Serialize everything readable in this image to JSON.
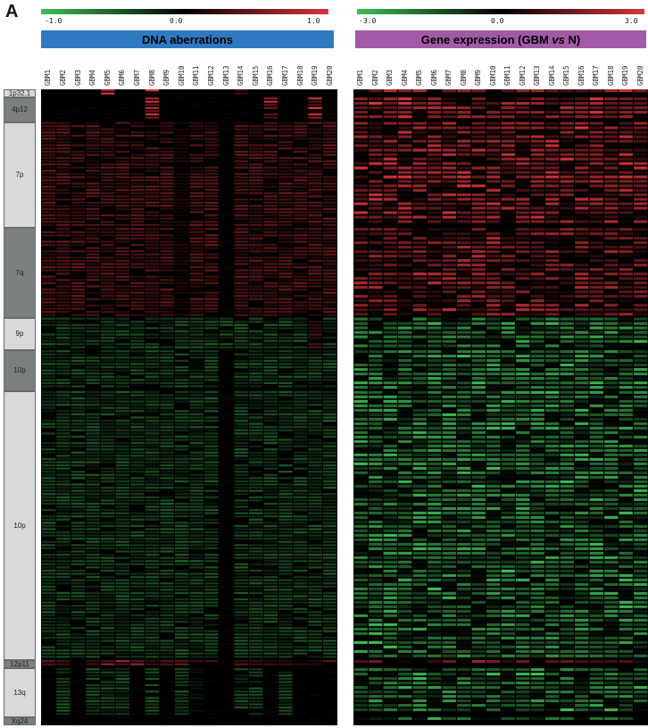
{
  "panel_label": "A",
  "colors": {
    "green": "#3fbf55",
    "black": "#000000",
    "red": "#d9353c",
    "dna_header": "#2f79c3",
    "expr_header": "#a35aa6",
    "chrom_light": "#d9d9d9",
    "chrom_dark": "#7a7f80"
  },
  "scales": {
    "dna": {
      "min_label": "-1.0",
      "mid_label": "0.0",
      "max_label": "1.0"
    },
    "expr": {
      "min_label": "-3.0",
      "mid_label": "0.0",
      "max_label": "3.0"
    }
  },
  "headers": {
    "dna": "DNA aberrations",
    "expr": "Gene expression (GBM vs N)"
  },
  "samples": [
    "GBM1",
    "GBM2",
    "GBM3",
    "GBM4",
    "GBM5",
    "GBM6",
    "GBM7",
    "GBM8",
    "GBM9",
    "GBM10",
    "GBM11",
    "GBM12",
    "GBM13",
    "GBM14",
    "GBM15",
    "GBM16",
    "GBM17",
    "GBM18",
    "GBM19",
    "GBM20"
  ],
  "chromosome_bands": [
    {
      "label": "1p32.1",
      "shade": "light",
      "rows": 1
    },
    {
      "label": "4p12",
      "shade": "dark",
      "rows": 3
    },
    {
      "label": "7p",
      "shade": "light",
      "rows": 13
    },
    {
      "label": "7q",
      "shade": "dark",
      "rows": 11
    },
    {
      "label": "9p",
      "shade": "light",
      "rows": 4
    },
    {
      "label": "10p",
      "shade": "dark",
      "rows": 5
    },
    {
      "label": "10p",
      "shade": "light",
      "rows": 33
    },
    {
      "label": "12p11",
      "shade": "dark",
      "rows": 1
    },
    {
      "label": "13q",
      "shade": "light",
      "rows": 6
    },
    {
      "label": "Xq24",
      "shade": "dark",
      "rows": 1
    }
  ],
  "chart_data": [
    {
      "type": "heatmap",
      "title": "DNA aberrations",
      "columns": [
        "GBM1",
        "GBM2",
        "GBM3",
        "GBM4",
        "GBM5",
        "GBM6",
        "GBM7",
        "GBM8",
        "GBM9",
        "GBM10",
        "GBM11",
        "GBM12",
        "GBM13",
        "GBM14",
        "GBM15",
        "GBM16",
        "GBM17",
        "GBM18",
        "GBM19",
        "GBM20"
      ],
      "row_groups": [
        "1p32.1",
        "4p12",
        "7p",
        "7q",
        "9p",
        "10p",
        "10p",
        "12p11",
        "13q",
        "Xq24"
      ],
      "value_range": [
        -1.0,
        1.0
      ],
      "summary_by_group": {
        "1p32.1": [
          0,
          0,
          0,
          0,
          0.9,
          0,
          0,
          0.9,
          0,
          0,
          0,
          0,
          0,
          0.2,
          0,
          0,
          0,
          0,
          0,
          0
        ],
        "4p12": [
          0,
          0,
          0,
          0,
          0,
          0,
          0,
          0.8,
          0,
          0,
          0,
          0,
          0,
          0,
          0,
          0.6,
          0,
          0,
          0.7,
          0
        ],
        "7p": [
          0.3,
          0.3,
          0.3,
          0.3,
          0.3,
          0.3,
          0.3,
          0.3,
          0.3,
          0.1,
          0.3,
          0.3,
          0,
          0.3,
          0.3,
          0.3,
          0.3,
          0.3,
          0.3,
          0.3
        ],
        "7q": [
          0.3,
          0.3,
          0.3,
          0.3,
          0.3,
          0.3,
          0.3,
          0.3,
          0.3,
          0.1,
          0.3,
          0.3,
          0,
          0.3,
          0.3,
          0.3,
          0.3,
          0.3,
          0.3,
          0.3
        ],
        "9p": [
          -0.3,
          -0.3,
          -0.3,
          -0.3,
          -0.3,
          -0.3,
          -0.3,
          -0.3,
          -0.3,
          -0.3,
          -0.3,
          -0.3,
          -0.3,
          -0.3,
          -0.3,
          -0.3,
          -0.3,
          -0.3,
          0.3,
          -0.3
        ],
        "10p_a": [
          -0.3,
          -0.3,
          -0.3,
          -0.3,
          -0.3,
          -0.3,
          -0.3,
          -0.3,
          -0.3,
          -0.3,
          -0.3,
          -0.3,
          0,
          -0.3,
          -0.3,
          -0.3,
          -0.3,
          -0.3,
          -0.3,
          -0.3
        ],
        "10p_b": [
          -0.3,
          -0.3,
          -0.3,
          -0.3,
          -0.3,
          -0.3,
          -0.3,
          -0.3,
          -0.3,
          -0.3,
          -0.3,
          -0.3,
          0,
          -0.3,
          -0.3,
          -0.3,
          -0.3,
          -0.3,
          -0.3,
          -0.3
        ],
        "12p11": [
          0.3,
          0.3,
          0.3,
          0.3,
          0.5,
          0.5,
          0.5,
          0.3,
          0.5,
          0.5,
          0.3,
          0.3,
          0,
          0.3,
          0.3,
          0.3,
          0.3,
          0.3,
          0.3,
          0.3
        ],
        "13q": [
          0,
          -0.3,
          0,
          -0.3,
          -0.3,
          -0.3,
          0,
          -0.3,
          0,
          -0.3,
          -0.1,
          0,
          0,
          -0.3,
          -0.3,
          0,
          -0.3,
          0,
          0,
          0
        ],
        "Xq24": [
          0,
          0,
          0,
          0,
          0,
          0,
          0,
          0,
          0,
          0,
          0,
          0,
          0,
          0,
          0,
          0,
          0,
          0,
          0,
          0
        ]
      }
    },
    {
      "type": "heatmap",
      "title": "Gene expression (GBM vs N)",
      "columns": [
        "GBM1",
        "GBM2",
        "GBM3",
        "GBM4",
        "GBM5",
        "GBM6",
        "GBM7",
        "GBM8",
        "GBM9",
        "GBM10",
        "GBM11",
        "GBM12",
        "GBM13",
        "GBM14",
        "GBM15",
        "GBM16",
        "GBM17",
        "GBM18",
        "GBM19",
        "GBM20"
      ],
      "row_groups": [
        "1p32.1",
        "4p12",
        "7p",
        "7q",
        "9p",
        "10p",
        "10p",
        "12p11",
        "13q",
        "Xq24"
      ],
      "value_range": [
        -3.0,
        3.0
      ],
      "summary_by_group": {
        "1p32.1": [
          1.5,
          1.5,
          1.5,
          1.5,
          1.5,
          1.5,
          1.5,
          1.5,
          1.5,
          1.5,
          1.5,
          1.5,
          1.5,
          1.5,
          1.5,
          1.5,
          1.5,
          1.5,
          1.5,
          1.5
        ],
        "4p12": [
          1.5,
          1.5,
          1.5,
          1.5,
          1.5,
          1.5,
          1.5,
          1.5,
          1.5,
          1.5,
          1.5,
          1.5,
          1.5,
          1.5,
          1.5,
          1.5,
          1.5,
          1.5,
          1.5,
          1.5
        ],
        "7p": [
          1.5,
          1.5,
          1.5,
          1.5,
          1.5,
          1.5,
          1.5,
          1.5,
          1.5,
          1.5,
          1.5,
          1.5,
          1.5,
          1.5,
          1.5,
          1.5,
          1.5,
          1.5,
          1.5,
          1.5
        ],
        "7q": [
          1.2,
          1.2,
          1.2,
          1.2,
          1.2,
          1.2,
          1.2,
          1.2,
          1.2,
          1.2,
          1.2,
          1.2,
          1.2,
          1.2,
          1.2,
          1.2,
          1.2,
          1.2,
          1.2,
          1.2
        ],
        "9p": [
          -1.5,
          -1.5,
          -1.5,
          -1.5,
          -1.5,
          -1.5,
          -1.5,
          -1.5,
          -1.5,
          -1.5,
          -1.5,
          -1.5,
          -1.5,
          -1.5,
          -1.5,
          -1.5,
          -1.5,
          -1.5,
          -1.5,
          -1.5
        ],
        "10p_a": [
          -1.5,
          -1.5,
          -1.5,
          -1.5,
          -1.5,
          -1.5,
          -1.5,
          -1.5,
          -1.5,
          -1.5,
          -1.5,
          -1.5,
          -1.5,
          -1.5,
          -1.5,
          -1.5,
          -1.5,
          -1.5,
          -1.5,
          -1.5
        ],
        "10p_b": [
          -1.5,
          -1.5,
          -1.5,
          -1.5,
          -1.5,
          -1.5,
          -1.5,
          -1.5,
          -1.5,
          -1.5,
          -1.5,
          -1.5,
          -1.5,
          -1.5,
          -1.5,
          -1.5,
          -1.5,
          -1.5,
          -1.5,
          -1.5
        ],
        "12p11": [
          1.0,
          1.0,
          1.0,
          1.0,
          1.0,
          1.0,
          1.0,
          1.0,
          1.0,
          1.0,
          1.0,
          1.0,
          1.0,
          1.0,
          1.0,
          1.0,
          1.0,
          1.0,
          1.0,
          1.0
        ],
        "13q": [
          -1.5,
          -1.5,
          -1.5,
          -1.5,
          -1.5,
          -1.5,
          -1.5,
          -1.5,
          -1.5,
          -1.5,
          -1.5,
          -1.5,
          -1.5,
          -1.5,
          -1.5,
          -1.5,
          -1.5,
          -1.5,
          -1.5,
          -1.5
        ],
        "Xq24": [
          -1.5,
          -1.5,
          -1.5,
          -1.5,
          -1.5,
          -1.5,
          -1.5,
          -1.5,
          -1.5,
          -1.5,
          -1.5,
          -1.5,
          -1.5,
          -1.5,
          -1.5,
          -1.5,
          -1.5,
          -1.5,
          -1.5,
          -1.5
        ]
      }
    }
  ]
}
